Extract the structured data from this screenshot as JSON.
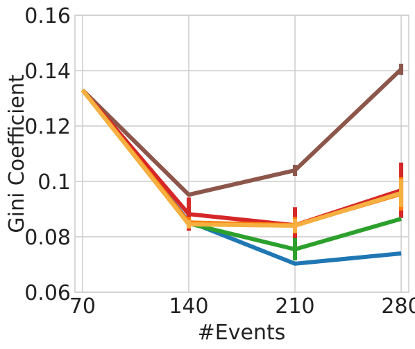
{
  "chart_data": {
    "type": "line",
    "xlabel": "#Events",
    "ylabel": "Gini Coefficient",
    "x": [
      70,
      140,
      210,
      280
    ],
    "x_ticks": [
      70,
      140,
      210,
      280
    ],
    "xlim": [
      65,
      285
    ],
    "ylim": [
      0.06,
      0.16
    ],
    "y_ticks": [
      0.06,
      0.08,
      0.1,
      0.12,
      0.14,
      0.16
    ],
    "y_tick_labels": [
      "0.06",
      "0.08",
      "0.1",
      "0.12",
      "0.14",
      "0.16"
    ],
    "grid": true,
    "series": [
      {
        "color": "#1f77b4",
        "values": [
          0.133,
          0.0855,
          0.0703,
          0.074
        ],
        "errors": [
          0,
          0,
          0,
          0
        ]
      },
      {
        "color": "#8c564b",
        "values": [
          0.133,
          0.0952,
          0.104,
          0.1405
        ],
        "errors": [
          0,
          0,
          0.002,
          0.002
        ]
      },
      {
        "color": "#d62728",
        "values": [
          0.133,
          0.0882,
          0.0842,
          0.0968
        ],
        "errors": [
          0,
          0.006,
          0.0065,
          0.01
        ]
      },
      {
        "color": "#2ca02c",
        "values": [
          0.133,
          0.0848,
          0.0755,
          0.0865
        ],
        "errors": [
          0,
          0.001,
          0.004,
          0
        ]
      },
      {
        "color": "#ff7f0e",
        "values": [
          0.133,
          0.0852,
          0.0842,
          0.0955
        ],
        "errors": [
          0,
          0.002,
          0.003,
          0.006
        ]
      },
      {
        "color": "#f5b041",
        "values": [
          0.133,
          0.0845,
          0.084,
          0.0958
        ],
        "errors": [
          0,
          0.0015,
          0.0025,
          0.005
        ]
      }
    ]
  }
}
